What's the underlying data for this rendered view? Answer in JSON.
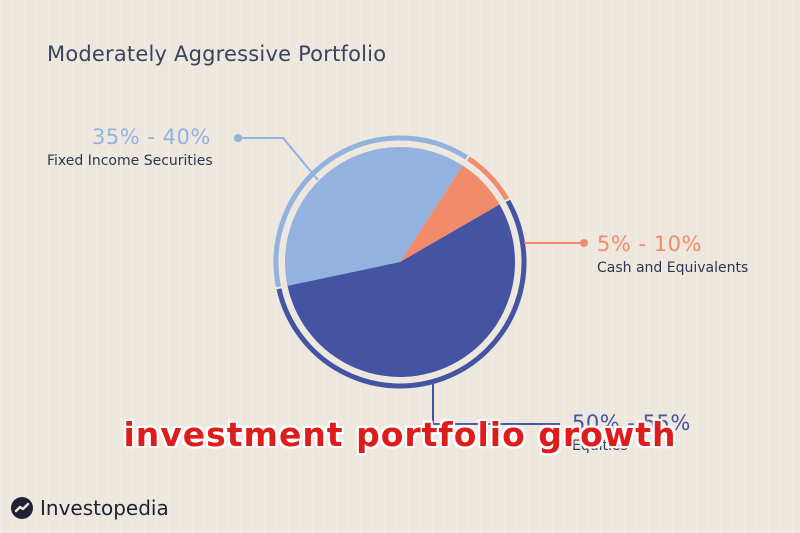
{
  "title": "Moderately Aggressive Portfolio",
  "colors": {
    "fixed_income": "#93b2df",
    "cash": "#f28a6c",
    "equities": "#4454a3",
    "background": "#ede7dd"
  },
  "chart_data": {
    "type": "pie",
    "title": "Moderately Aggressive Portfolio",
    "slices": [
      {
        "name": "Fixed Income Securities",
        "label": "35% - 40%",
        "value": 37.5,
        "color": "#93b2df"
      },
      {
        "name": "Cash and Equivalents",
        "label": "5% - 10%",
        "value": 7.5,
        "color": "#f28a6c"
      },
      {
        "name": "Equities",
        "label": "50% - 55%",
        "value": 55,
        "color": "#4454a3"
      }
    ]
  },
  "overlay_text": "investment portfolio growth",
  "brand": {
    "name": "Investopedia",
    "icon": "investopedia-logo-icon"
  }
}
